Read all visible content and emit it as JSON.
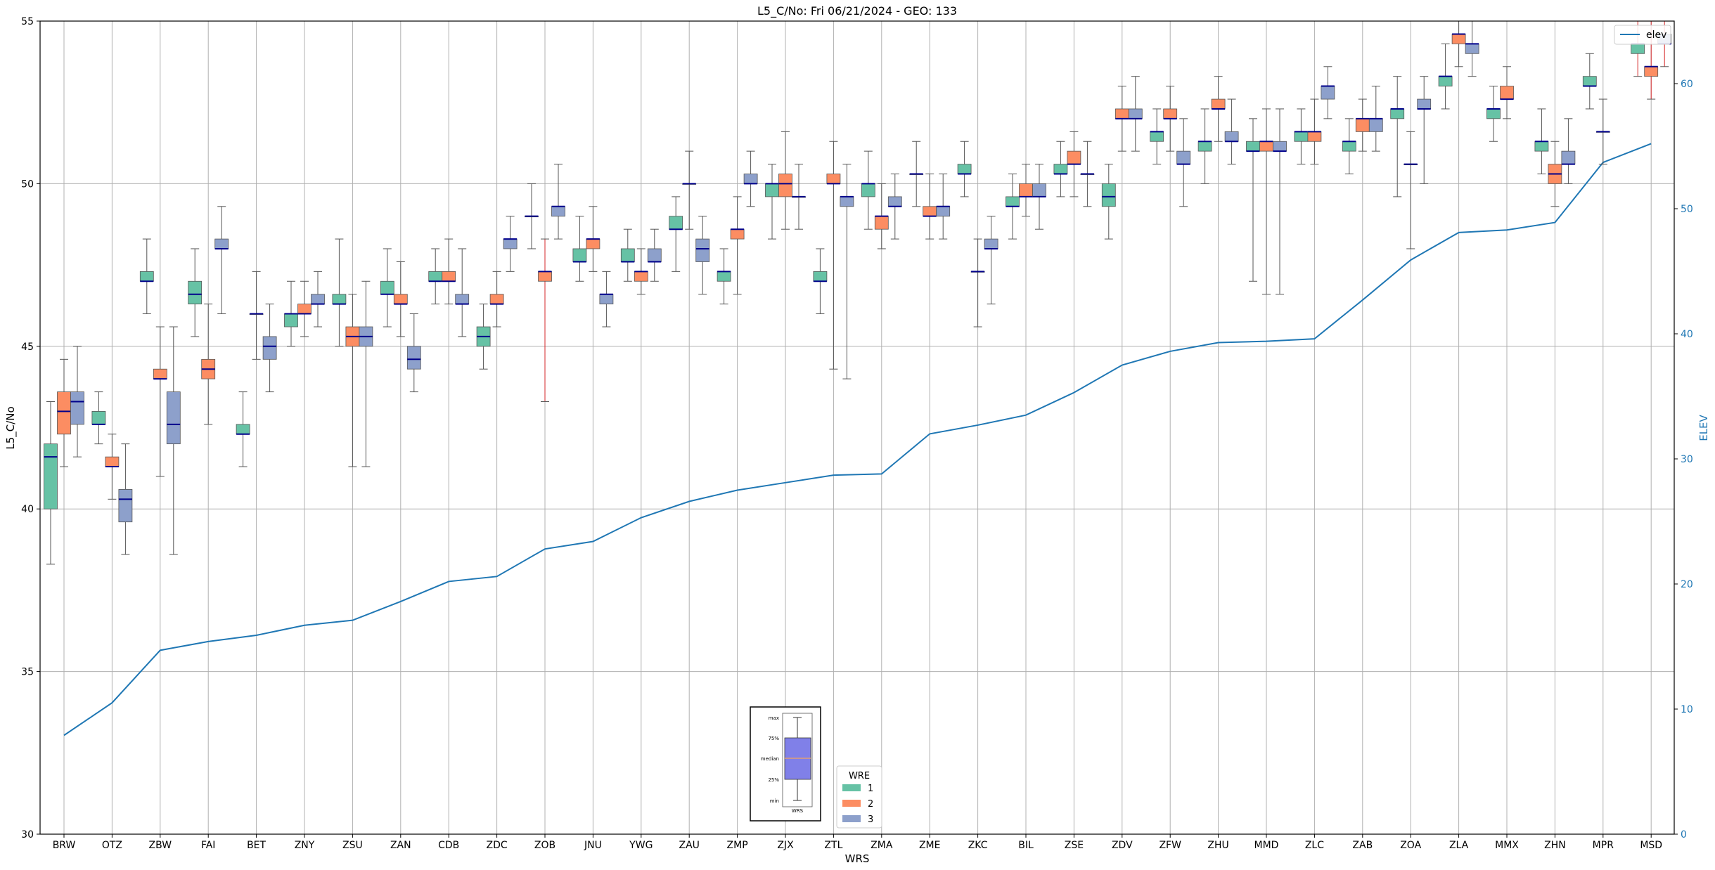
{
  "chart_data": {
    "type": "box",
    "title": "L5_C/No: Fri 06/21/2024 - GEO: 133",
    "xlabel": "WRS",
    "ylabel": "L5_C/No",
    "y2label": "ELEV",
    "ylim": [
      30,
      55
    ],
    "y2lim": [
      0,
      65
    ],
    "yticks": [
      30,
      35,
      40,
      45,
      50,
      55
    ],
    "y2ticks": [
      0,
      10,
      20,
      30,
      40,
      50,
      60
    ],
    "grid": true,
    "legend_title": "WRE",
    "legend_placement": "bottom-center",
    "elev_legend_label": "elev",
    "elev_legend_placement": "top-right",
    "wre_labels": [
      "1",
      "2",
      "3"
    ],
    "colors": {
      "wre1": "#66c2a5",
      "wre2": "#fc8d62",
      "wre3": "#8da0cb",
      "median": "#00008b",
      "whisker": "#555555",
      "outlier_whisker": "#d62728",
      "elev": "#1f77b4",
      "grid": "#b0b0b0",
      "key_box": "#8080e8"
    },
    "key_labels": [
      "max",
      "75%",
      "median",
      "25%",
      "min",
      "WRS"
    ],
    "categories": [
      "BRW",
      "OTZ",
      "ZBW",
      "FAI",
      "BET",
      "ZNY",
      "ZSU",
      "ZAN",
      "CDB",
      "ZDC",
      "ZOB",
      "JNU",
      "YWG",
      "ZAU",
      "ZMP",
      "ZJX",
      "ZTL",
      "ZMA",
      "ZME",
      "ZKC",
      "BIL",
      "ZSE",
      "ZDV",
      "ZFW",
      "ZHU",
      "MMD",
      "ZLC",
      "ZAB",
      "ZOA",
      "ZLA",
      "MMX",
      "ZHN",
      "MPR",
      "MSD"
    ],
    "elev": [
      7.9,
      10.5,
      14.7,
      15.4,
      15.9,
      16.7,
      17.1,
      18.6,
      20.2,
      20.6,
      22.8,
      23.4,
      25.3,
      26.6,
      27.5,
      28.1,
      28.7,
      28.8,
      32.0,
      32.7,
      33.5,
      35.3,
      37.5,
      38.6,
      39.3,
      39.4,
      39.6,
      42.7,
      45.9,
      48.1,
      48.3,
      48.9,
      53.7,
      55.2
    ],
    "boxes": [
      {
        "wrs": "BRW",
        "wre": 1,
        "min": 38.3,
        "q1": 40.0,
        "median": 41.6,
        "q3": 42.0,
        "max": 43.3
      },
      {
        "wrs": "BRW",
        "wre": 2,
        "min": 41.3,
        "q1": 42.3,
        "median": 43.0,
        "q3": 43.6,
        "max": 44.6
      },
      {
        "wrs": "BRW",
        "wre": 3,
        "min": 41.6,
        "q1": 42.6,
        "median": 43.3,
        "q3": 43.6,
        "max": 45.0
      },
      {
        "wrs": "OTZ",
        "wre": 1,
        "min": 42.0,
        "q1": 42.6,
        "median": 42.6,
        "q3": 43.0,
        "max": 43.6
      },
      {
        "wrs": "OTZ",
        "wre": 2,
        "min": 40.3,
        "q1": 41.3,
        "median": 41.3,
        "q3": 41.6,
        "max": 42.3
      },
      {
        "wrs": "OTZ",
        "wre": 3,
        "min": 38.6,
        "q1": 39.6,
        "median": 40.3,
        "q3": 40.6,
        "max": 42.0
      },
      {
        "wrs": "ZBW",
        "wre": 1,
        "min": 46.0,
        "q1": 47.0,
        "median": 47.0,
        "q3": 47.3,
        "max": 48.3
      },
      {
        "wrs": "ZBW",
        "wre": 2,
        "min": 41.0,
        "q1": 44.0,
        "median": 44.0,
        "q3": 44.3,
        "max": 45.6
      },
      {
        "wrs": "ZBW",
        "wre": 3,
        "min": 38.6,
        "q1": 42.0,
        "median": 42.6,
        "q3": 43.6,
        "max": 45.6
      },
      {
        "wrs": "FAI",
        "wre": 1,
        "min": 45.3,
        "q1": 46.3,
        "median": 46.6,
        "q3": 47.0,
        "max": 48.0
      },
      {
        "wrs": "FAI",
        "wre": 2,
        "min": 42.6,
        "q1": 44.0,
        "median": 44.3,
        "q3": 44.6,
        "max": 46.3
      },
      {
        "wrs": "FAI",
        "wre": 3,
        "min": 46.0,
        "q1": 48.0,
        "median": 48.0,
        "q3": 48.3,
        "max": 49.3
      },
      {
        "wrs": "BET",
        "wre": 1,
        "min": 41.3,
        "q1": 42.3,
        "median": 42.3,
        "q3": 42.6,
        "max": 43.6
      },
      {
        "wrs": "BET",
        "wre": 2,
        "min": 44.6,
        "q1": 46.0,
        "median": 46.0,
        "q3": 46.0,
        "max": 47.3
      },
      {
        "wrs": "BET",
        "wre": 3,
        "min": 43.6,
        "q1": 44.6,
        "median": 45.0,
        "q3": 45.3,
        "max": 46.3
      },
      {
        "wrs": "ZNY",
        "wre": 1,
        "min": 45.0,
        "q1": 45.6,
        "median": 46.0,
        "q3": 46.0,
        "max": 47.0
      },
      {
        "wrs": "ZNY",
        "wre": 2,
        "min": 45.3,
        "q1": 46.0,
        "median": 46.0,
        "q3": 46.3,
        "max": 47.0
      },
      {
        "wrs": "ZNY",
        "wre": 3,
        "min": 45.6,
        "q1": 46.3,
        "median": 46.3,
        "q3": 46.6,
        "max": 47.3
      },
      {
        "wrs": "ZSU",
        "wre": 1,
        "min": 45.0,
        "q1": 46.3,
        "median": 46.3,
        "q3": 46.6,
        "max": 48.3
      },
      {
        "wrs": "ZSU",
        "wre": 2,
        "min": 41.3,
        "q1": 45.0,
        "median": 45.3,
        "q3": 45.6,
        "max": 46.6
      },
      {
        "wrs": "ZSU",
        "wre": 3,
        "min": 41.3,
        "q1": 45.0,
        "median": 45.3,
        "q3": 45.6,
        "max": 47.0
      },
      {
        "wrs": "ZAN",
        "wre": 1,
        "min": 45.6,
        "q1": 46.6,
        "median": 46.6,
        "q3": 47.0,
        "max": 48.0
      },
      {
        "wrs": "ZAN",
        "wre": 2,
        "min": 45.3,
        "q1": 46.3,
        "median": 46.3,
        "q3": 46.6,
        "max": 47.6
      },
      {
        "wrs": "ZAN",
        "wre": 3,
        "min": 43.6,
        "q1": 44.3,
        "median": 44.6,
        "q3": 45.0,
        "max": 46.0
      },
      {
        "wrs": "CDB",
        "wre": 1,
        "min": 46.3,
        "q1": 47.0,
        "median": 47.0,
        "q3": 47.3,
        "max": 48.0
      },
      {
        "wrs": "CDB",
        "wre": 2,
        "min": 46.3,
        "q1": 47.0,
        "median": 47.0,
        "q3": 47.3,
        "max": 48.3
      },
      {
        "wrs": "CDB",
        "wre": 3,
        "min": 45.3,
        "q1": 46.3,
        "median": 46.3,
        "q3": 46.6,
        "max": 48.0
      },
      {
        "wrs": "ZDC",
        "wre": 1,
        "min": 44.3,
        "q1": 45.0,
        "median": 45.3,
        "q3": 45.6,
        "max": 46.3
      },
      {
        "wrs": "ZDC",
        "wre": 2,
        "min": 45.6,
        "q1": 46.3,
        "median": 46.3,
        "q3": 46.6,
        "max": 47.3
      },
      {
        "wrs": "ZDC",
        "wre": 3,
        "min": 47.3,
        "q1": 48.0,
        "median": 48.3,
        "q3": 48.3,
        "max": 49.0
      },
      {
        "wrs": "ZOB",
        "wre": 1,
        "min": 48.0,
        "q1": 49.0,
        "median": 49.0,
        "q3": 49.0,
        "max": 50.0
      },
      {
        "wrs": "ZOB",
        "wre": 2,
        "min": 43.3,
        "q1": 47.0,
        "median": 47.3,
        "q3": 47.3,
        "max": 48.3,
        "outlier": true
      },
      {
        "wrs": "ZOB",
        "wre": 3,
        "min": 48.3,
        "q1": 49.0,
        "median": 49.3,
        "q3": 49.3,
        "max": 50.6
      },
      {
        "wrs": "JNU",
        "wre": 1,
        "min": 47.0,
        "q1": 47.6,
        "median": 47.6,
        "q3": 48.0,
        "max": 49.0
      },
      {
        "wrs": "JNU",
        "wre": 2,
        "min": 47.3,
        "q1": 48.0,
        "median": 48.3,
        "q3": 48.3,
        "max": 49.3
      },
      {
        "wrs": "JNU",
        "wre": 3,
        "min": 45.6,
        "q1": 46.3,
        "median": 46.6,
        "q3": 46.6,
        "max": 47.3
      },
      {
        "wrs": "YWG",
        "wre": 1,
        "min": 47.0,
        "q1": 47.6,
        "median": 47.6,
        "q3": 48.0,
        "max": 48.6
      },
      {
        "wrs": "YWG",
        "wre": 2,
        "min": 46.6,
        "q1": 47.0,
        "median": 47.3,
        "q3": 47.3,
        "max": 48.0
      },
      {
        "wrs": "YWG",
        "wre": 3,
        "min": 47.0,
        "q1": 47.6,
        "median": 47.6,
        "q3": 48.0,
        "max": 48.6
      },
      {
        "wrs": "ZAU",
        "wre": 1,
        "min": 47.3,
        "q1": 48.6,
        "median": 48.6,
        "q3": 49.0,
        "max": 49.6
      },
      {
        "wrs": "ZAU",
        "wre": 2,
        "min": 48.6,
        "q1": 50.0,
        "median": 50.0,
        "q3": 50.0,
        "max": 51.0
      },
      {
        "wrs": "ZAU",
        "wre": 3,
        "min": 46.6,
        "q1": 47.6,
        "median": 48.0,
        "q3": 48.3,
        "max": 49.0
      },
      {
        "wrs": "ZMP",
        "wre": 1,
        "min": 46.3,
        "q1": 47.0,
        "median": 47.3,
        "q3": 47.3,
        "max": 48.0
      },
      {
        "wrs": "ZMP",
        "wre": 2,
        "min": 46.6,
        "q1": 48.3,
        "median": 48.6,
        "q3": 48.6,
        "max": 49.6
      },
      {
        "wrs": "ZMP",
        "wre": 3,
        "min": 49.3,
        "q1": 50.0,
        "median": 50.0,
        "q3": 50.3,
        "max": 51.0
      },
      {
        "wrs": "ZJX",
        "wre": 1,
        "min": 48.3,
        "q1": 49.6,
        "median": 50.0,
        "q3": 50.0,
        "max": 50.6
      },
      {
        "wrs": "ZJX",
        "wre": 2,
        "min": 48.6,
        "q1": 49.6,
        "median": 50.0,
        "q3": 50.3,
        "max": 51.6
      },
      {
        "wrs": "ZJX",
        "wre": 3,
        "min": 48.6,
        "q1": 49.6,
        "median": 49.6,
        "q3": 49.6,
        "max": 50.6
      },
      {
        "wrs": "ZTL",
        "wre": 1,
        "min": 46.0,
        "q1": 47.0,
        "median": 47.0,
        "q3": 47.3,
        "max": 48.0
      },
      {
        "wrs": "ZTL",
        "wre": 2,
        "min": 44.3,
        "q1": 50.0,
        "median": 50.0,
        "q3": 50.3,
        "max": 51.3
      },
      {
        "wrs": "ZTL",
        "wre": 3,
        "min": 44.0,
        "q1": 49.3,
        "median": 49.6,
        "q3": 49.6,
        "max": 50.6
      },
      {
        "wrs": "ZMA",
        "wre": 1,
        "min": 48.6,
        "q1": 49.6,
        "median": 50.0,
        "q3": 50.0,
        "max": 51.0
      },
      {
        "wrs": "ZMA",
        "wre": 2,
        "min": 48.0,
        "q1": 48.6,
        "median": 49.0,
        "q3": 49.0,
        "max": 50.0
      },
      {
        "wrs": "ZMA",
        "wre": 3,
        "min": 48.3,
        "q1": 49.3,
        "median": 49.3,
        "q3": 49.6,
        "max": 50.3
      },
      {
        "wrs": "ZME",
        "wre": 1,
        "min": 49.3,
        "q1": 50.3,
        "median": 50.3,
        "q3": 50.3,
        "max": 51.3
      },
      {
        "wrs": "ZME",
        "wre": 2,
        "min": 48.3,
        "q1": 49.0,
        "median": 49.0,
        "q3": 49.3,
        "max": 50.3
      },
      {
        "wrs": "ZME",
        "wre": 3,
        "min": 48.3,
        "q1": 49.0,
        "median": 49.3,
        "q3": 49.3,
        "max": 50.3
      },
      {
        "wrs": "ZKC",
        "wre": 1,
        "min": 49.6,
        "q1": 50.3,
        "median": 50.3,
        "q3": 50.6,
        "max": 51.3
      },
      {
        "wrs": "ZKC",
        "wre": 2,
        "min": 45.6,
        "q1": 47.3,
        "median": 47.3,
        "q3": 47.3,
        "max": 48.3
      },
      {
        "wrs": "ZKC",
        "wre": 3,
        "min": 46.3,
        "q1": 48.0,
        "median": 48.0,
        "q3": 48.3,
        "max": 49.0
      },
      {
        "wrs": "BIL",
        "wre": 1,
        "min": 48.3,
        "q1": 49.3,
        "median": 49.3,
        "q3": 49.6,
        "max": 50.3
      },
      {
        "wrs": "BIL",
        "wre": 2,
        "min": 49.0,
        "q1": 49.6,
        "median": 49.6,
        "q3": 50.0,
        "max": 50.6
      },
      {
        "wrs": "BIL",
        "wre": 3,
        "min": 48.6,
        "q1": 49.6,
        "median": 49.6,
        "q3": 50.0,
        "max": 50.6
      },
      {
        "wrs": "ZSE",
        "wre": 1,
        "min": 49.6,
        "q1": 50.3,
        "median": 50.3,
        "q3": 50.6,
        "max": 51.3
      },
      {
        "wrs": "ZSE",
        "wre": 2,
        "min": 49.6,
        "q1": 50.6,
        "median": 50.6,
        "q3": 51.0,
        "max": 51.6
      },
      {
        "wrs": "ZSE",
        "wre": 3,
        "min": 49.3,
        "q1": 50.3,
        "median": 50.3,
        "q3": 50.3,
        "max": 51.3
      },
      {
        "wrs": "ZDV",
        "wre": 1,
        "min": 48.3,
        "q1": 49.3,
        "median": 49.6,
        "q3": 50.0,
        "max": 50.6
      },
      {
        "wrs": "ZDV",
        "wre": 2,
        "min": 51.0,
        "q1": 52.0,
        "median": 52.0,
        "q3": 52.3,
        "max": 53.0
      },
      {
        "wrs": "ZDV",
        "wre": 3,
        "min": 51.0,
        "q1": 52.0,
        "median": 52.0,
        "q3": 52.3,
        "max": 53.3
      },
      {
        "wrs": "ZFW",
        "wre": 1,
        "min": 50.6,
        "q1": 51.3,
        "median": 51.6,
        "q3": 51.6,
        "max": 52.3
      },
      {
        "wrs": "ZFW",
        "wre": 2,
        "min": 51.0,
        "q1": 52.0,
        "median": 52.0,
        "q3": 52.3,
        "max": 53.0
      },
      {
        "wrs": "ZFW",
        "wre": 3,
        "min": 49.3,
        "q1": 50.6,
        "median": 50.6,
        "q3": 51.0,
        "max": 52.0
      },
      {
        "wrs": "ZHU",
        "wre": 1,
        "min": 50.0,
        "q1": 51.0,
        "median": 51.3,
        "q3": 51.3,
        "max": 52.3
      },
      {
        "wrs": "ZHU",
        "wre": 2,
        "min": 51.3,
        "q1": 52.3,
        "median": 52.3,
        "q3": 52.6,
        "max": 53.3
      },
      {
        "wrs": "ZHU",
        "wre": 3,
        "min": 50.6,
        "q1": 51.3,
        "median": 51.3,
        "q3": 51.6,
        "max": 52.6
      },
      {
        "wrs": "MMD",
        "wre": 1,
        "min": 47.0,
        "q1": 51.0,
        "median": 51.0,
        "q3": 51.3,
        "max": 52.0
      },
      {
        "wrs": "MMD",
        "wre": 2,
        "min": 46.6,
        "q1": 51.0,
        "median": 51.3,
        "q3": 51.3,
        "max": 52.3
      },
      {
        "wrs": "MMD",
        "wre": 3,
        "min": 46.6,
        "q1": 51.0,
        "median": 51.0,
        "q3": 51.3,
        "max": 52.3
      },
      {
        "wrs": "ZLC",
        "wre": 1,
        "min": 50.6,
        "q1": 51.3,
        "median": 51.6,
        "q3": 51.6,
        "max": 52.3
      },
      {
        "wrs": "ZLC",
        "wre": 2,
        "min": 50.6,
        "q1": 51.3,
        "median": 51.6,
        "q3": 51.6,
        "max": 52.6
      },
      {
        "wrs": "ZLC",
        "wre": 3,
        "min": 52.0,
        "q1": 52.6,
        "median": 53.0,
        "q3": 53.0,
        "max": 53.6
      },
      {
        "wrs": "ZAB",
        "wre": 1,
        "min": 50.3,
        "q1": 51.0,
        "median": 51.3,
        "q3": 51.3,
        "max": 52.0
      },
      {
        "wrs": "ZAB",
        "wre": 2,
        "min": 51.0,
        "q1": 51.6,
        "median": 52.0,
        "q3": 52.0,
        "max": 52.6
      },
      {
        "wrs": "ZAB",
        "wre": 3,
        "min": 51.0,
        "q1": 51.6,
        "median": 52.0,
        "q3": 52.0,
        "max": 53.0
      },
      {
        "wrs": "ZOA",
        "wre": 1,
        "min": 49.6,
        "q1": 52.0,
        "median": 52.3,
        "q3": 52.3,
        "max": 53.3
      },
      {
        "wrs": "ZOA",
        "wre": 2,
        "min": 48.0,
        "q1": 50.6,
        "median": 50.6,
        "q3": 50.6,
        "max": 51.6
      },
      {
        "wrs": "ZOA",
        "wre": 3,
        "min": 50.0,
        "q1": 52.3,
        "median": 52.3,
        "q3": 52.6,
        "max": 53.3
      },
      {
        "wrs": "ZLA",
        "wre": 1,
        "min": 52.3,
        "q1": 53.0,
        "median": 53.3,
        "q3": 53.3,
        "max": 54.3
      },
      {
        "wrs": "ZLA",
        "wre": 2,
        "min": 53.6,
        "q1": 54.3,
        "median": 54.6,
        "q3": 54.6,
        "max": 55.3
      },
      {
        "wrs": "ZLA",
        "wre": 3,
        "min": 53.3,
        "q1": 54.0,
        "median": 54.3,
        "q3": 54.3,
        "max": 55.0
      },
      {
        "wrs": "MMX",
        "wre": 1,
        "min": 51.3,
        "q1": 52.0,
        "median": 52.3,
        "q3": 52.3,
        "max": 53.0
      },
      {
        "wrs": "MMX",
        "wre": 2,
        "min": 52.0,
        "q1": 52.6,
        "median": 52.6,
        "q3": 53.0,
        "max": 53.6
      },
      {
        "wrs": "ZHN",
        "wre": 1,
        "min": 50.3,
        "q1": 51.0,
        "median": 51.3,
        "q3": 51.3,
        "max": 52.3
      },
      {
        "wrs": "ZHN",
        "wre": 2,
        "min": 49.3,
        "q1": 50.0,
        "median": 50.3,
        "q3": 50.6,
        "max": 51.3
      },
      {
        "wrs": "ZHN",
        "wre": 3,
        "min": 50.0,
        "q1": 50.6,
        "median": 50.6,
        "q3": 51.0,
        "max": 52.0
      },
      {
        "wrs": "MPR",
        "wre": 1,
        "min": 52.3,
        "q1": 53.0,
        "median": 53.0,
        "q3": 53.3,
        "max": 54.0
      },
      {
        "wrs": "MPR",
        "wre": 2,
        "min": 50.6,
        "q1": 51.6,
        "median": 51.6,
        "q3": 51.6,
        "max": 52.6
      },
      {
        "wrs": "MSD",
        "wre": 1,
        "min": 53.3,
        "q1": 54.0,
        "median": 54.3,
        "q3": 54.3,
        "max": 55.0,
        "outlier": true
      },
      {
        "wrs": "MSD",
        "wre": 2,
        "min": 52.6,
        "q1": 53.3,
        "median": 53.6,
        "q3": 53.6,
        "max": 55.0,
        "outlier": true
      },
      {
        "wrs": "MSD",
        "wre": 3,
        "min": 53.6,
        "q1": 54.3,
        "median": 54.3,
        "q3": 54.6,
        "max": 55.0,
        "outlier": true
      }
    ]
  }
}
